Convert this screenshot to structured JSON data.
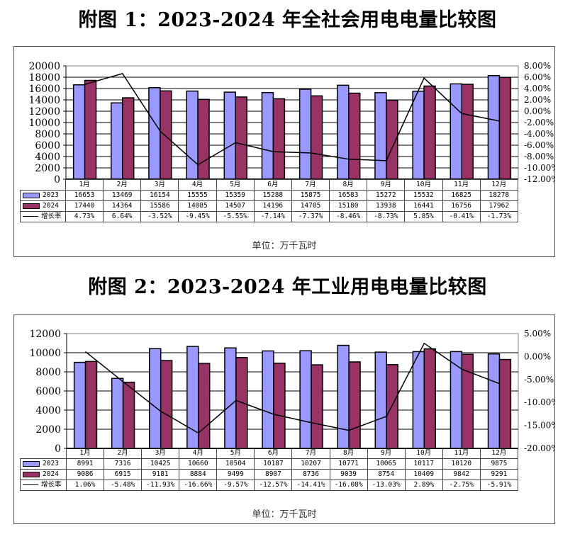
{
  "figures": [
    {
      "title": "附图 1：2023-2024 年全社会用电电量比较图",
      "unit": "单位：万千瓦时"
    },
    {
      "title": "附图 2：2023-2024 年工业用电电量比较图",
      "unit": "单位：万千瓦时"
    }
  ],
  "legend": {
    "s2023": "2023",
    "s2024": "2024",
    "growth": "增长率"
  },
  "colors": {
    "s2023": "#9999FF",
    "s2024": "#993366",
    "line": "#000000",
    "grid": "#000000"
  },
  "chart_data": [
    {
      "type": "bar",
      "title": "附图 1：2023-2024 年全社会用电电量比较图",
      "categories": [
        "1月",
        "2月",
        "3月",
        "4月",
        "5月",
        "6月",
        "7月",
        "8月",
        "9月",
        "10月",
        "11月",
        "12月"
      ],
      "series": [
        {
          "name": "2023",
          "type": "bar",
          "values": [
            16653,
            13469,
            16154,
            15555,
            15359,
            15288,
            15875,
            16583,
            15272,
            15532,
            16825,
            18278
          ]
        },
        {
          "name": "2024",
          "type": "bar",
          "values": [
            17440,
            14364,
            15586,
            14085,
            14507,
            14196,
            14705,
            15180,
            13938,
            16441,
            16756,
            17962
          ]
        },
        {
          "name": "增长率",
          "type": "line",
          "axis": "right",
          "values": [
            4.73,
            6.64,
            -3.52,
            -9.45,
            -5.55,
            -7.14,
            -7.37,
            -8.46,
            -8.73,
            5.85,
            -0.41,
            -1.73
          ],
          "labels": [
            "4.73%",
            "6.64%",
            "-3.52%",
            "-9.45%",
            "-5.55%",
            "-7.14%",
            "-7.37%",
            "-8.46%",
            "-8.73%",
            "5.85%",
            "-0.41%",
            "-1.73%"
          ]
        }
      ],
      "ylim": [
        0,
        20000
      ],
      "yticks": [
        "20000",
        "18000",
        "16000",
        "14000",
        "12000",
        "10000",
        "8000",
        "6000",
        "4000",
        "2000",
        "0"
      ],
      "y2lim": [
        -12,
        8
      ],
      "y2ticks": [
        "8.00%",
        "6.00%",
        "4.00%",
        "2.00%",
        "0.00%",
        "-2.00%",
        "-4.00%",
        "-6.00%",
        "-8.00%",
        "-10.00%",
        "-12.00%"
      ],
      "xlabel": "",
      "ylabel": "",
      "grid": true,
      "legend_position": "data-table",
      "annotation": "单位：万千瓦时"
    },
    {
      "type": "bar",
      "title": "附图 2：2023-2024 年工业用电电量比较图",
      "categories": [
        "1月",
        "2月",
        "3月",
        "4月",
        "5月",
        "6月",
        "7月",
        "8月",
        "9月",
        "10月",
        "11月",
        "12月"
      ],
      "series": [
        {
          "name": "2023",
          "type": "bar",
          "values": [
            8991,
            7316,
            10425,
            10660,
            10504,
            10187,
            10207,
            10771,
            10065,
            10117,
            10120,
            9875
          ]
        },
        {
          "name": "2024",
          "type": "bar",
          "values": [
            9086,
            6915,
            9181,
            8884,
            9499,
            8907,
            8736,
            9039,
            8754,
            10409,
            9842,
            9291
          ]
        },
        {
          "name": "增长率",
          "type": "line",
          "axis": "right",
          "values": [
            1.06,
            -5.48,
            -11.93,
            -16.66,
            -9.57,
            -12.57,
            -14.41,
            -16.08,
            -13.03,
            2.89,
            -2.75,
            -5.91
          ],
          "labels": [
            "1.06%",
            "-5.48%",
            "-11.93%",
            "-16.66%",
            "-9.57%",
            "-12.57%",
            "-14.41%",
            "-16.08%",
            "-13.03%",
            "2.89%",
            "-2.75%",
            "-5.91%"
          ]
        }
      ],
      "ylim": [
        0,
        12000
      ],
      "yticks": [
        "12000",
        "10000",
        "8000",
        "6000",
        "4000",
        "2000",
        "0"
      ],
      "y2lim": [
        -20,
        5
      ],
      "y2ticks": [
        "5.00%",
        "0.00%",
        "-5.00%",
        "-10.00%",
        "-15.00%",
        "-20.00%"
      ],
      "xlabel": "",
      "ylabel": "",
      "grid": true,
      "legend_position": "data-table",
      "annotation": "单位：万千瓦时"
    }
  ]
}
